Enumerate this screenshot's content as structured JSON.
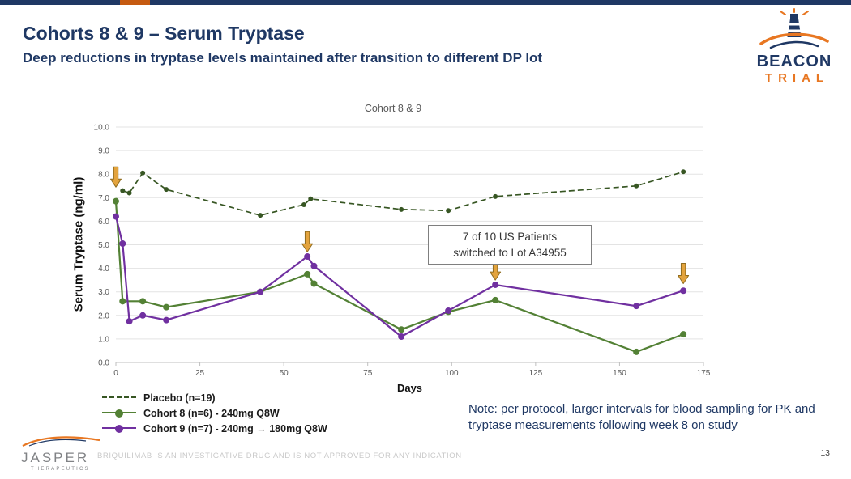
{
  "header": {
    "title": "Cohorts 8 & 9 – Serum Tryptase",
    "subtitle": "Deep reductions in tryptase levels maintained after transition to different DP lot"
  },
  "logos": {
    "beacon": {
      "line1": "BEACON",
      "line2": "TRIAL"
    },
    "jasper": {
      "name": "JASPER",
      "sub": "THERAPEUTICS"
    }
  },
  "chart_data": {
    "type": "line",
    "title": "Cohort 8 & 9",
    "xlabel": "Days",
    "ylabel": "Serum Tryptase (ng/ml)",
    "xlim": [
      0,
      175
    ],
    "ylim": [
      0,
      10
    ],
    "xticks": [
      0,
      25,
      50,
      75,
      100,
      125,
      150,
      175
    ],
    "yticks": [
      0,
      1,
      2,
      3,
      4,
      5,
      6,
      7,
      8,
      9,
      10
    ],
    "grid": "horizontal",
    "legend_position": "bottom-left",
    "series": [
      {
        "name": "Placebo (n=19)",
        "color": "#375623",
        "style": "dashed",
        "marker_size": 3,
        "x": [
          2,
          4,
          8,
          15,
          43,
          56,
          58,
          85,
          99,
          113,
          155,
          169
        ],
        "y": [
          7.3,
          7.2,
          8.05,
          7.35,
          6.25,
          6.7,
          6.95,
          6.5,
          6.45,
          7.05,
          7.5,
          8.1
        ]
      },
      {
        "name": "Cohort 8 (n=6) - 240mg Q8W",
        "color": "#538135",
        "style": "solid",
        "marker_size": 4,
        "x": [
          0,
          2,
          8,
          15,
          43,
          57,
          59,
          85,
          99,
          113,
          155,
          169
        ],
        "y": [
          6.85,
          2.6,
          2.6,
          2.35,
          3.0,
          3.75,
          3.35,
          1.4,
          2.15,
          2.65,
          0.45,
          1.2
        ]
      },
      {
        "name": "Cohort 9 (n=7) - 240mg → 180mg Q8W",
        "color": "#7030A0",
        "style": "solid",
        "marker_size": 4,
        "x": [
          0,
          2,
          4,
          8,
          15,
          43,
          57,
          59,
          85,
          99,
          113,
          155,
          169
        ],
        "y": [
          6.2,
          5.05,
          1.75,
          2.0,
          1.8,
          3.0,
          4.5,
          4.1,
          1.1,
          2.2,
          3.3,
          2.4,
          3.05
        ]
      }
    ],
    "dose_arrows": [
      {
        "x": 0,
        "y": 7.45
      },
      {
        "x": 57,
        "y": 4.7
      },
      {
        "x": 113,
        "y": 3.5
      },
      {
        "x": 169,
        "y": 3.35
      }
    ],
    "arrow_fill": "#E3A33D",
    "arrow_stroke": "#8F6B1E",
    "annotation": {
      "line1": "7 of 10 US Patients",
      "line2": "switched to Lot A34955"
    }
  },
  "note": "Note: per protocol, larger intervals for blood sampling for PK and tryptase measurements following week 8 on study",
  "footer": {
    "disclaimer": "BRIQUILIMAB IS AN INVESTIGATIVE DRUG AND IS NOT APPROVED FOR ANY INDICATION",
    "page": "13"
  },
  "colors": {
    "navy": "#1F3864",
    "orange": "#E87722",
    "accent_bar": "#C55A11"
  }
}
